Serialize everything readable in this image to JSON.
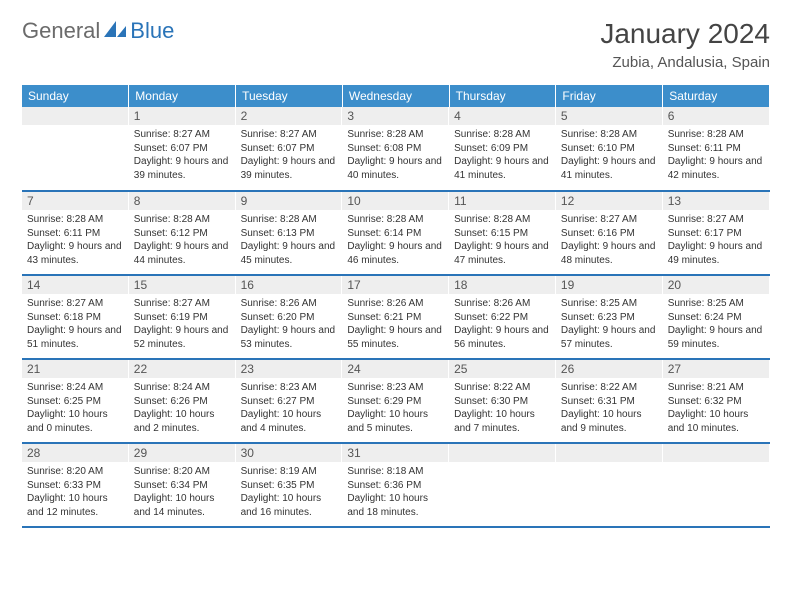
{
  "brand": {
    "general": "General",
    "blue": "Blue"
  },
  "title": "January 2024",
  "location": "Zubia, Andalusia, Spain",
  "colors": {
    "header_bg": "#3c8ecb",
    "header_text": "#ffffff",
    "daynum_bg": "#eeeeee",
    "border": "#2a74b8",
    "brand_gray": "#6b6b6b",
    "brand_blue": "#2a74b8"
  },
  "weekdays": [
    "Sunday",
    "Monday",
    "Tuesday",
    "Wednesday",
    "Thursday",
    "Friday",
    "Saturday"
  ],
  "days": {
    "1": {
      "sunrise": "8:27 AM",
      "sunset": "6:07 PM",
      "daylight": "9 hours and 39 minutes."
    },
    "2": {
      "sunrise": "8:27 AM",
      "sunset": "6:07 PM",
      "daylight": "9 hours and 39 minutes."
    },
    "3": {
      "sunrise": "8:28 AM",
      "sunset": "6:08 PM",
      "daylight": "9 hours and 40 minutes."
    },
    "4": {
      "sunrise": "8:28 AM",
      "sunset": "6:09 PM",
      "daylight": "9 hours and 41 minutes."
    },
    "5": {
      "sunrise": "8:28 AM",
      "sunset": "6:10 PM",
      "daylight": "9 hours and 41 minutes."
    },
    "6": {
      "sunrise": "8:28 AM",
      "sunset": "6:11 PM",
      "daylight": "9 hours and 42 minutes."
    },
    "7": {
      "sunrise": "8:28 AM",
      "sunset": "6:11 PM",
      "daylight": "9 hours and 43 minutes."
    },
    "8": {
      "sunrise": "8:28 AM",
      "sunset": "6:12 PM",
      "daylight": "9 hours and 44 minutes."
    },
    "9": {
      "sunrise": "8:28 AM",
      "sunset": "6:13 PM",
      "daylight": "9 hours and 45 minutes."
    },
    "10": {
      "sunrise": "8:28 AM",
      "sunset": "6:14 PM",
      "daylight": "9 hours and 46 minutes."
    },
    "11": {
      "sunrise": "8:28 AM",
      "sunset": "6:15 PM",
      "daylight": "9 hours and 47 minutes."
    },
    "12": {
      "sunrise": "8:27 AM",
      "sunset": "6:16 PM",
      "daylight": "9 hours and 48 minutes."
    },
    "13": {
      "sunrise": "8:27 AM",
      "sunset": "6:17 PM",
      "daylight": "9 hours and 49 minutes."
    },
    "14": {
      "sunrise": "8:27 AM",
      "sunset": "6:18 PM",
      "daylight": "9 hours and 51 minutes."
    },
    "15": {
      "sunrise": "8:27 AM",
      "sunset": "6:19 PM",
      "daylight": "9 hours and 52 minutes."
    },
    "16": {
      "sunrise": "8:26 AM",
      "sunset": "6:20 PM",
      "daylight": "9 hours and 53 minutes."
    },
    "17": {
      "sunrise": "8:26 AM",
      "sunset": "6:21 PM",
      "daylight": "9 hours and 55 minutes."
    },
    "18": {
      "sunrise": "8:26 AM",
      "sunset": "6:22 PM",
      "daylight": "9 hours and 56 minutes."
    },
    "19": {
      "sunrise": "8:25 AM",
      "sunset": "6:23 PM",
      "daylight": "9 hours and 57 minutes."
    },
    "20": {
      "sunrise": "8:25 AM",
      "sunset": "6:24 PM",
      "daylight": "9 hours and 59 minutes."
    },
    "21": {
      "sunrise": "8:24 AM",
      "sunset": "6:25 PM",
      "daylight": "10 hours and 0 minutes."
    },
    "22": {
      "sunrise": "8:24 AM",
      "sunset": "6:26 PM",
      "daylight": "10 hours and 2 minutes."
    },
    "23": {
      "sunrise": "8:23 AM",
      "sunset": "6:27 PM",
      "daylight": "10 hours and 4 minutes."
    },
    "24": {
      "sunrise": "8:23 AM",
      "sunset": "6:29 PM",
      "daylight": "10 hours and 5 minutes."
    },
    "25": {
      "sunrise": "8:22 AM",
      "sunset": "6:30 PM",
      "daylight": "10 hours and 7 minutes."
    },
    "26": {
      "sunrise": "8:22 AM",
      "sunset": "6:31 PM",
      "daylight": "10 hours and 9 minutes."
    },
    "27": {
      "sunrise": "8:21 AM",
      "sunset": "6:32 PM",
      "daylight": "10 hours and 10 minutes."
    },
    "28": {
      "sunrise": "8:20 AM",
      "sunset": "6:33 PM",
      "daylight": "10 hours and 12 minutes."
    },
    "29": {
      "sunrise": "8:20 AM",
      "sunset": "6:34 PM",
      "daylight": "10 hours and 14 minutes."
    },
    "30": {
      "sunrise": "8:19 AM",
      "sunset": "6:35 PM",
      "daylight": "10 hours and 16 minutes."
    },
    "31": {
      "sunrise": "8:18 AM",
      "sunset": "6:36 PM",
      "daylight": "10 hours and 18 minutes."
    }
  },
  "layout": {
    "first_weekday_index": 1,
    "num_days": 31,
    "labels": {
      "sunrise": "Sunrise: ",
      "sunset": "Sunset: ",
      "daylight": "Daylight: "
    }
  }
}
